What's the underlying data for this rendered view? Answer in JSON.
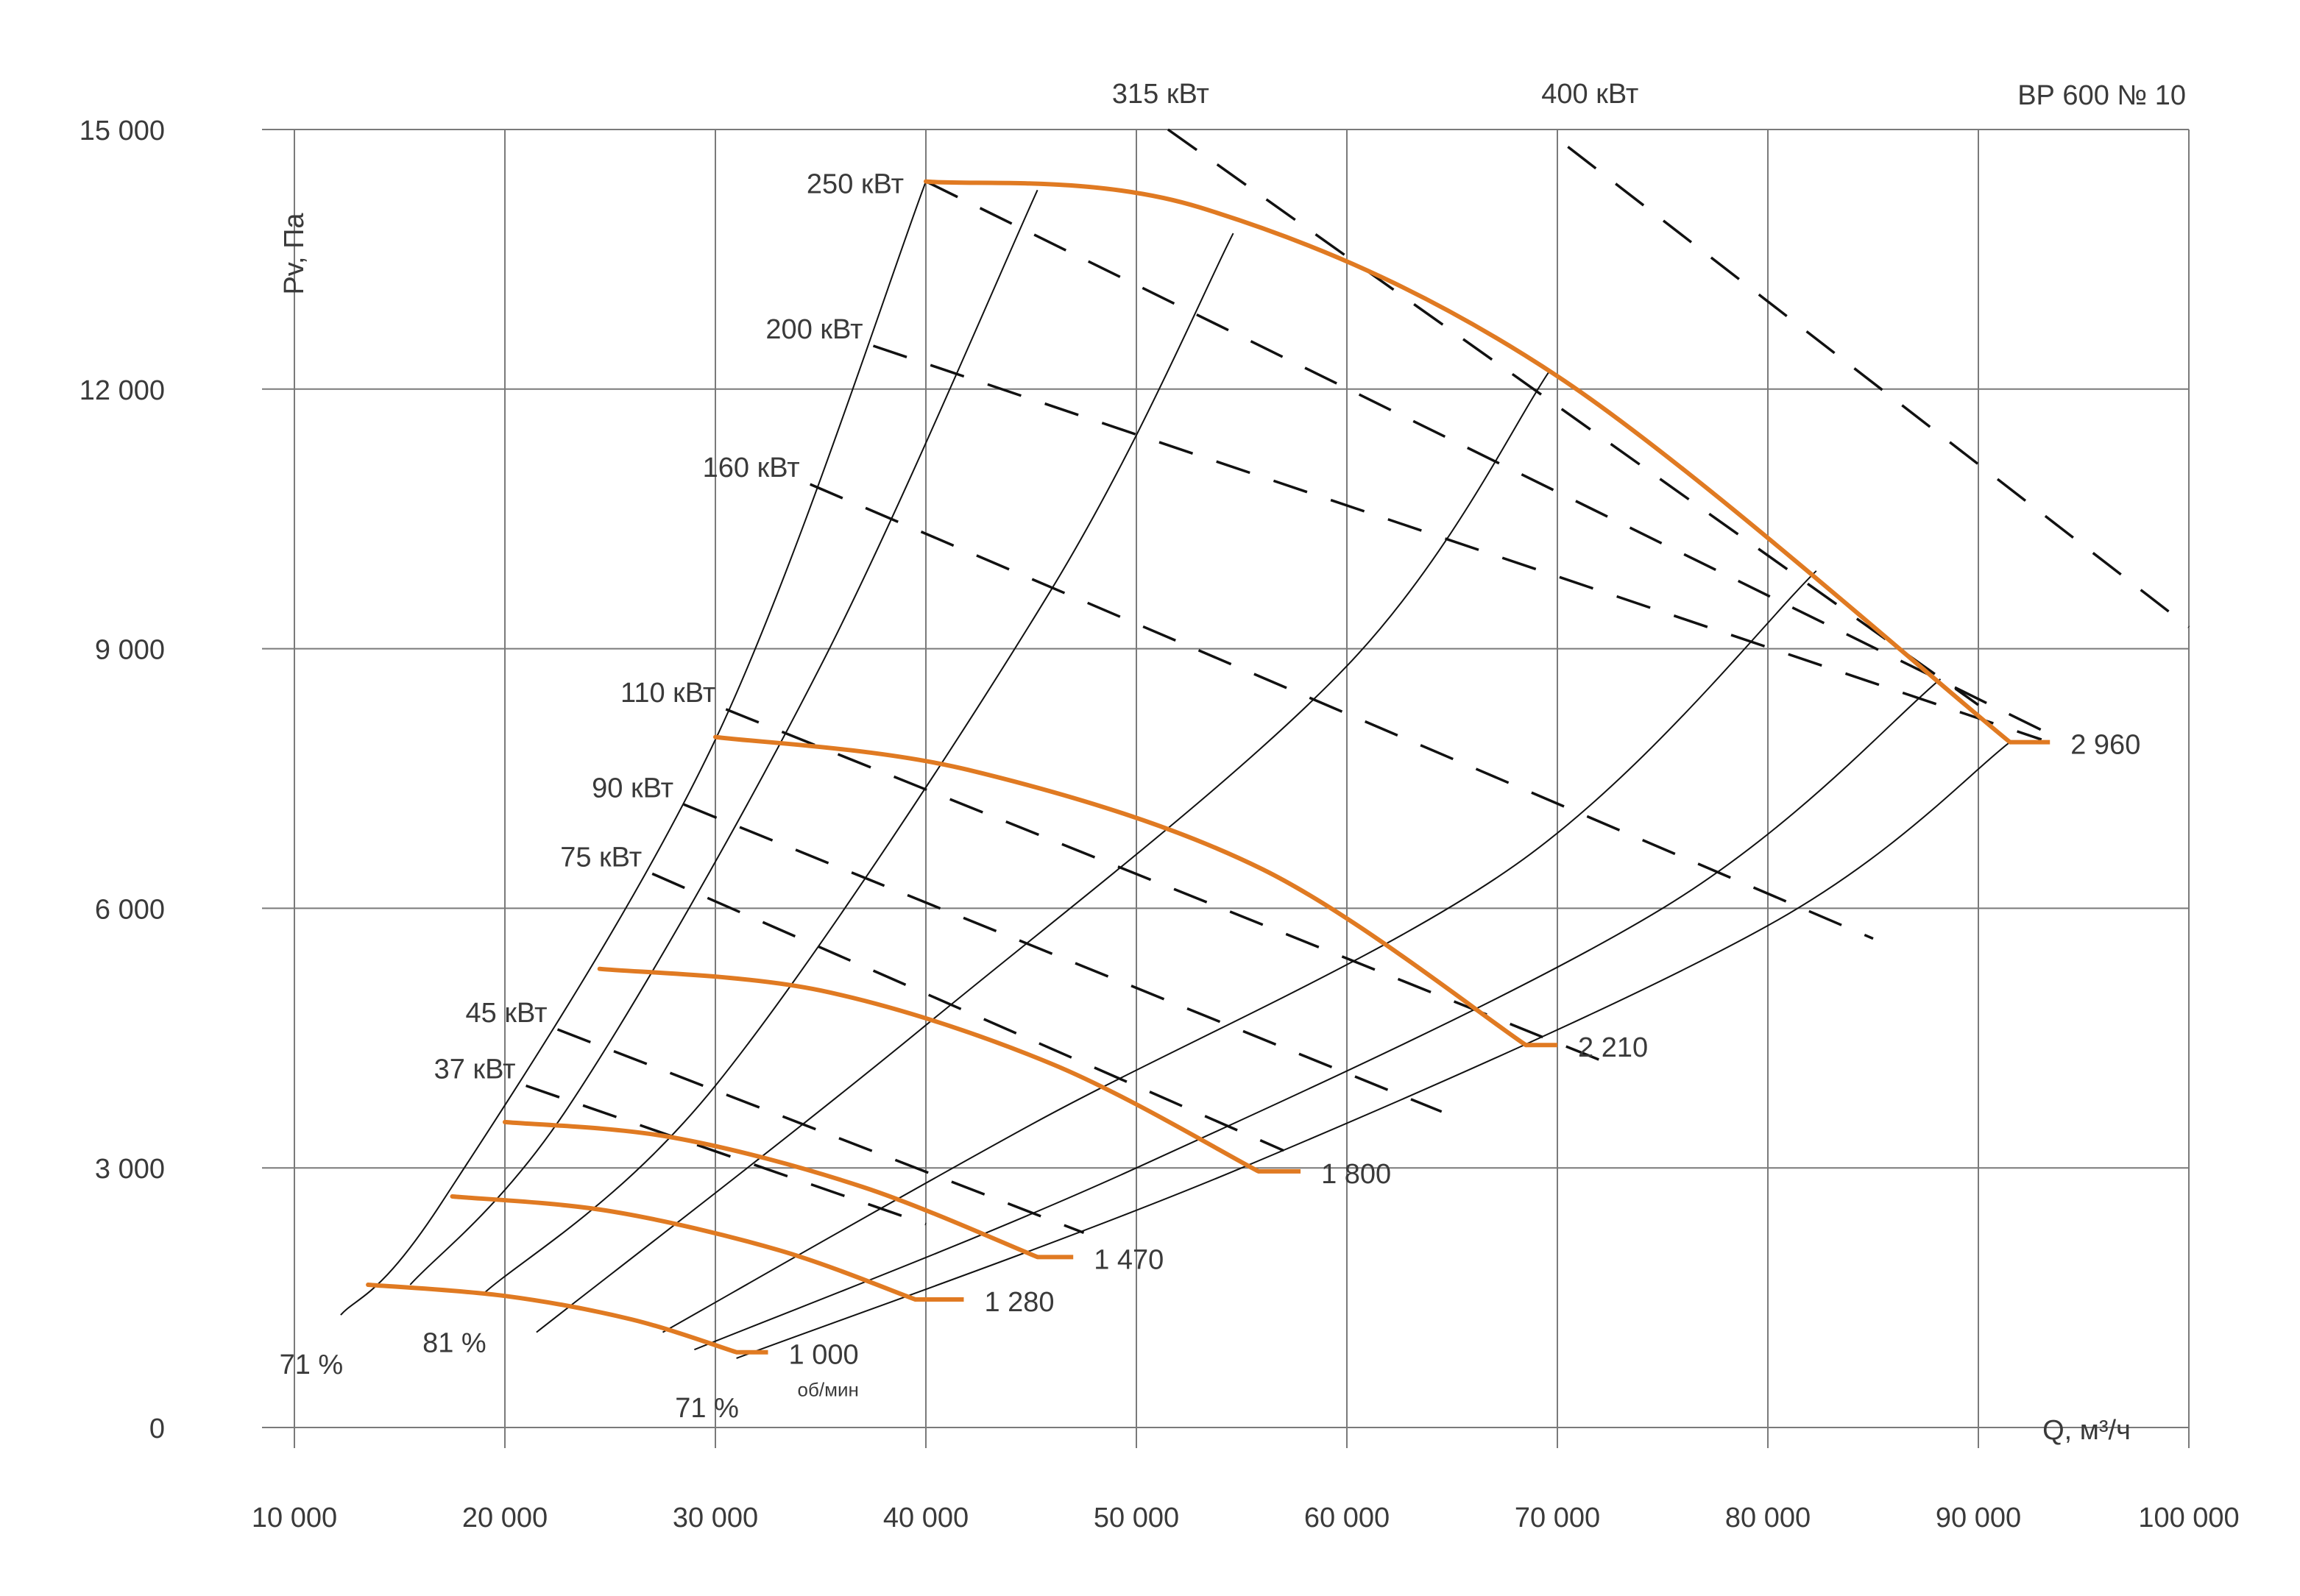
{
  "chart_data": {
    "type": "line",
    "title": "ВР 600 № 10",
    "xlabel": "Q, м³/ч",
    "ylabel": "Pv, Па",
    "xlim": [
      10000,
      100000
    ],
    "ylim": [
      0,
      15000
    ],
    "grid": true,
    "x_ticks": [
      {
        "value": 10000,
        "label": "10 000"
      },
      {
        "value": 20000,
        "label": "20 000"
      },
      {
        "value": 30000,
        "label": "30 000"
      },
      {
        "value": 40000,
        "label": "40 000"
      },
      {
        "value": 50000,
        "label": "50 000"
      },
      {
        "value": 60000,
        "label": "60 000"
      },
      {
        "value": 70000,
        "label": "70 000"
      },
      {
        "value": 80000,
        "label": "80 000"
      },
      {
        "value": 90000,
        "label": "90 000"
      },
      {
        "value": 100000,
        "label": "100 000"
      }
    ],
    "y_ticks": [
      {
        "value": 0,
        "label": "0"
      },
      {
        "value": 3000,
        "label": "3 000"
      },
      {
        "value": 6000,
        "label": "6 000"
      },
      {
        "value": 9000,
        "label": "9 000"
      },
      {
        "value": 12000,
        "label": "12 000"
      },
      {
        "value": 15000,
        "label": "15 000"
      }
    ],
    "colors": {
      "speed_curve": "#e07a22",
      "grid": "#7a7a7a",
      "text": "#3a3a3a",
      "line": "#111111"
    },
    "speed_curves": [
      {
        "label": "1 000",
        "sublabel": "об/мин",
        "points": [
          [
            13500,
            1650
          ],
          [
            20000,
            1520
          ],
          [
            26000,
            1250
          ],
          [
            31000,
            870
          ]
        ],
        "tail": [
          31000,
          32500,
          870
        ]
      },
      {
        "label": "1 280",
        "points": [
          [
            17500,
            2670
          ],
          [
            25000,
            2500
          ],
          [
            33000,
            2050
          ],
          [
            39500,
            1480
          ]
        ],
        "tail": [
          39500,
          41800,
          1480
        ]
      },
      {
        "label": "1 470",
        "points": [
          [
            20000,
            3530
          ],
          [
            28000,
            3350
          ],
          [
            37000,
            2780
          ],
          [
            45300,
            1970
          ]
        ],
        "tail": [
          45300,
          47000,
          1970
        ]
      },
      {
        "label": "1 800",
        "points": [
          [
            24500,
            5300
          ],
          [
            35000,
            5050
          ],
          [
            46000,
            4200
          ],
          [
            55800,
            2960
          ]
        ],
        "tail": [
          55800,
          57800,
          2960
        ]
      },
      {
        "label": "2 210",
        "points": [
          [
            30000,
            7980
          ],
          [
            42000,
            7600
          ],
          [
            56000,
            6450
          ],
          [
            68500,
            4420
          ]
        ],
        "tail": [
          68500,
          70000,
          4420
        ]
      },
      {
        "label": "2 960",
        "points": [
          [
            40000,
            14400
          ],
          [
            53000,
            14100
          ],
          [
            70000,
            12150
          ],
          [
            91500,
            7920
          ]
        ],
        "tail": [
          91500,
          93400,
          7920
        ]
      }
    ],
    "efficiency_curves": [
      {
        "label": "71 %",
        "points": [
          [
            12200,
            1300
          ],
          [
            17000,
            2600
          ],
          [
            30000,
            7950
          ],
          [
            40000,
            14400
          ]
        ]
      },
      {
        "label": "",
        "points": [
          [
            15500,
            1650
          ],
          [
            23000,
            3700
          ],
          [
            35000,
            8800
          ],
          [
            45300,
            14300
          ]
        ]
      },
      {
        "label": "81 %",
        "points": [
          [
            19000,
            1550
          ],
          [
            30000,
            3950
          ],
          [
            46000,
            9700
          ],
          [
            54600,
            13800
          ]
        ]
      },
      {
        "label": "",
        "points": [
          [
            21500,
            1100
          ],
          [
            40000,
            4650
          ],
          [
            60000,
            8800
          ],
          [
            69600,
            12200
          ]
        ]
      },
      {
        "label": "",
        "points": [
          [
            27500,
            1100
          ],
          [
            45000,
            3500
          ],
          [
            68000,
            6500
          ],
          [
            82300,
            9900
          ]
        ]
      },
      {
        "label": "",
        "points": [
          [
            29000,
            900
          ],
          [
            50000,
            3000
          ],
          [
            75000,
            6000
          ],
          [
            88200,
            8650
          ]
        ]
      },
      {
        "label": "71 %",
        "points": [
          [
            31000,
            800
          ],
          [
            55000,
            3000
          ],
          [
            80000,
            5800
          ],
          [
            91500,
            7920
          ]
        ]
      }
    ],
    "power_lines": [
      {
        "label": "37 кВт",
        "points": [
          [
            21000,
            3950
          ],
          [
            40000,
            2350
          ]
        ]
      },
      {
        "label": "45 кВт",
        "points": [
          [
            22500,
            4600
          ],
          [
            47500,
            2250
          ]
        ]
      },
      {
        "label": "75 кВт",
        "points": [
          [
            27000,
            6400
          ],
          [
            57000,
            3200
          ]
        ]
      },
      {
        "label": "90 кВт",
        "points": [
          [
            28500,
            7200
          ],
          [
            64500,
            3650
          ]
        ]
      },
      {
        "label": "110 кВт",
        "points": [
          [
            30500,
            8300
          ],
          [
            72500,
            4200
          ]
        ]
      },
      {
        "label": "160 кВт",
        "points": [
          [
            34500,
            10900
          ],
          [
            85000,
            5650
          ]
        ]
      },
      {
        "label": "200 кВт",
        "points": [
          [
            37500,
            12500
          ],
          [
            93000,
            7950
          ]
        ]
      },
      {
        "label": "250 кВт",
        "points": [
          [
            40000,
            14400
          ],
          [
            93500,
            8000
          ]
        ]
      },
      {
        "label": "315 кВт",
        "points": [
          [
            51500,
            15000
          ],
          [
            90000,
            8350
          ]
        ]
      },
      {
        "label": "400 кВт",
        "points": [
          [
            70500,
            14800
          ],
          [
            100000,
            9250
          ]
        ]
      }
    ]
  }
}
